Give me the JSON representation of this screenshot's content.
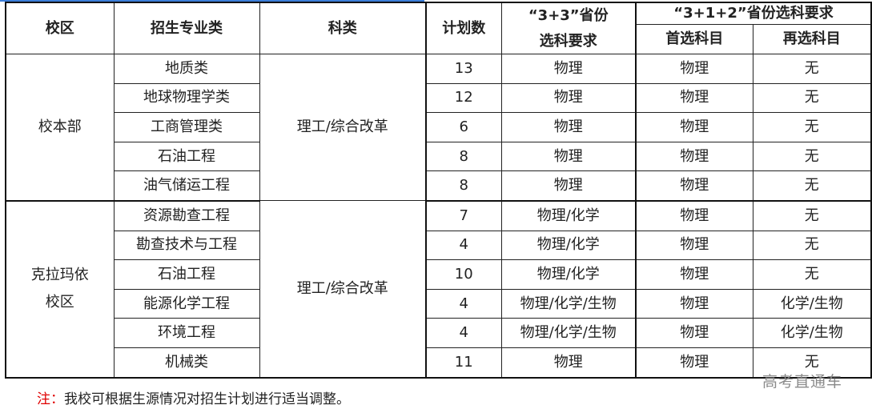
{
  "headers": {
    "campus": "校区",
    "major": "招生专业类",
    "category": "科类",
    "plan": "计划数",
    "req33_line1": "“3+3”省份",
    "req33_line2": "选科要求",
    "req312": "“3+1+2”省份选科要求",
    "first": "首选科目",
    "second": "再选科目"
  },
  "groups": [
    {
      "campus_line1": "校本部",
      "campus_line2": "",
      "category": "理工/综合改革",
      "rows": [
        {
          "major": "地质类",
          "plan": "13",
          "req33": "物理",
          "first": "物理",
          "second": "无"
        },
        {
          "major": "地球物理学类",
          "plan": "12",
          "req33": "物理",
          "first": "物理",
          "second": "无"
        },
        {
          "major": "工商管理类",
          "plan": "6",
          "req33": "物理",
          "first": "物理",
          "second": "无"
        },
        {
          "major": "石油工程",
          "plan": "8",
          "req33": "物理",
          "first": "物理",
          "second": "无"
        },
        {
          "major": "油气储运工程",
          "plan": "8",
          "req33": "物理",
          "first": "物理",
          "second": "无"
        }
      ]
    },
    {
      "campus_line1": "克拉玛依",
      "campus_line2": "校区",
      "category": "理工/综合改革",
      "rows": [
        {
          "major": "资源勘查工程",
          "plan": "7",
          "req33": "物理/化学",
          "first": "物理",
          "second": "无"
        },
        {
          "major": "勘查技术与工程",
          "plan": "4",
          "req33": "物理/化学",
          "first": "物理",
          "second": "无"
        },
        {
          "major": "石油工程",
          "plan": "10",
          "req33": "物理/化学",
          "first": "物理",
          "second": "无"
        },
        {
          "major": "能源化学工程",
          "plan": "4",
          "req33": "物理/化学/生物",
          "first": "物理",
          "second": "化学/生物"
        },
        {
          "major": "环境工程",
          "plan": "4",
          "req33": "物理/化学/生物",
          "first": "物理",
          "second": "化学/生物"
        },
        {
          "major": "机械类",
          "plan": "11",
          "req33": "物理",
          "first": "物理",
          "second": "无"
        }
      ]
    }
  ],
  "note": {
    "prefix": "注：",
    "text": "我校可根据生源情况对招生计划进行适当调整。"
  },
  "watermark": "高考直通车",
  "colors": {
    "note_prefix": "#e00000",
    "top_accent": "#3b7dd8"
  }
}
